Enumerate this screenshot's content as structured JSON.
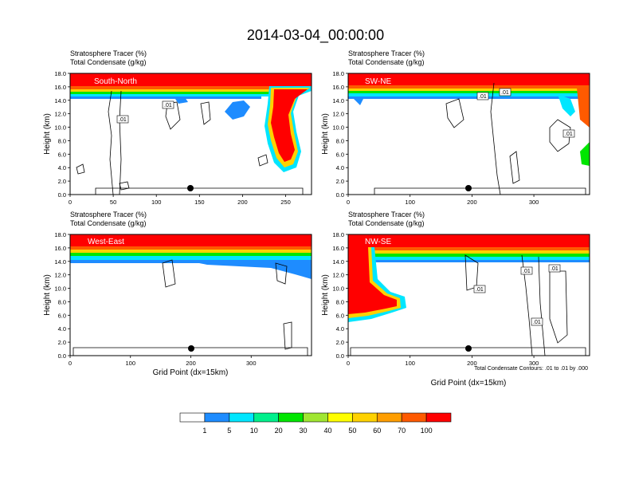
{
  "title": "2014-03-04_00:00:00",
  "footnote": "Total Condensate Contours: .01 to .01 by .000",
  "colorbar": {
    "labels": [
      "1",
      "5",
      "10",
      "20",
      "30",
      "40",
      "50",
      "60",
      "70",
      "100"
    ],
    "colors": [
      "#ffffff",
      "#1e8cff",
      "#00e6ff",
      "#00f08c",
      "#00e600",
      "#a0e632",
      "#ffff00",
      "#ffd200",
      "#ff9e00",
      "#ff5a00",
      "#ff0000"
    ]
  },
  "chart_data": [
    {
      "type": "heatmap",
      "panel_label": "South-North",
      "left_title_1": "Stratosphere Tracer   (%)",
      "left_title_2": "Total Condensate   (g/kg)",
      "ylabel": "Height (km)",
      "xlabel": "",
      "xlim": [
        0,
        280
      ],
      "ylim": [
        0,
        18
      ],
      "xticks": [
        "0",
        "50",
        "100",
        "150",
        "200",
        "250"
      ],
      "yticks": [
        "0.0",
        "2.0",
        "4.0",
        "6.0",
        "8.0",
        "10.0",
        "12.0",
        "14.0",
        "16.0",
        "18.0"
      ],
      "contour_labels": [
        ".01",
        ".01"
      ],
      "marker_x": 140
    },
    {
      "type": "heatmap",
      "panel_label": "SW-NE",
      "left_title_1": "Stratosphere Tracer   (%)",
      "left_title_2": "Total Condensate   (g/kg)",
      "ylabel": "Height (km)",
      "xlabel": "",
      "xlim": [
        0,
        390
      ],
      "ylim": [
        0,
        18
      ],
      "xticks": [
        "0",
        "100",
        "200",
        "300"
      ],
      "yticks": [
        "0.0",
        "2.0",
        "4.0",
        "6.0",
        "8.0",
        "10.0",
        "12.0",
        "14.0",
        "16.0",
        "18.0"
      ],
      "contour_labels": [
        ".01",
        ".01",
        ".01"
      ],
      "marker_x": 195
    },
    {
      "type": "heatmap",
      "panel_label": "West-East",
      "left_title_1": "Stratosphere Tracer   (%)",
      "left_title_2": "Total Condensate   (g/kg)",
      "ylabel": "Height (km)",
      "xlabel": "Grid Point (dx=15km)",
      "xlim": [
        0,
        400
      ],
      "ylim": [
        0,
        18
      ],
      "xticks": [
        "0",
        "100",
        "200",
        "300"
      ],
      "yticks": [
        "0.0",
        "2.0",
        "4.0",
        "6.0",
        "8.0",
        "10.0",
        "12.0",
        "14.0",
        "16.0",
        "18.0"
      ],
      "contour_labels": [],
      "marker_x": 200
    },
    {
      "type": "heatmap",
      "panel_label": "NW-SE",
      "left_title_1": "Stratosphere Tracer   (%)",
      "left_title_2": "Total Condensate   (g/kg)",
      "ylabel": "Height (km)",
      "xlabel": "Grid Point (dx=15km)",
      "xlim": [
        0,
        390
      ],
      "ylim": [
        0,
        18
      ],
      "xticks": [
        "0",
        "100",
        "200",
        "300"
      ],
      "yticks": [
        "0.0",
        "2.0",
        "4.0",
        "6.0",
        "8.0",
        "10.0",
        "12.0",
        "14.0",
        "16.0",
        "18.0"
      ],
      "contour_labels": [
        ".01",
        ".01",
        ".01",
        ".01"
      ],
      "marker_x": 195
    }
  ]
}
